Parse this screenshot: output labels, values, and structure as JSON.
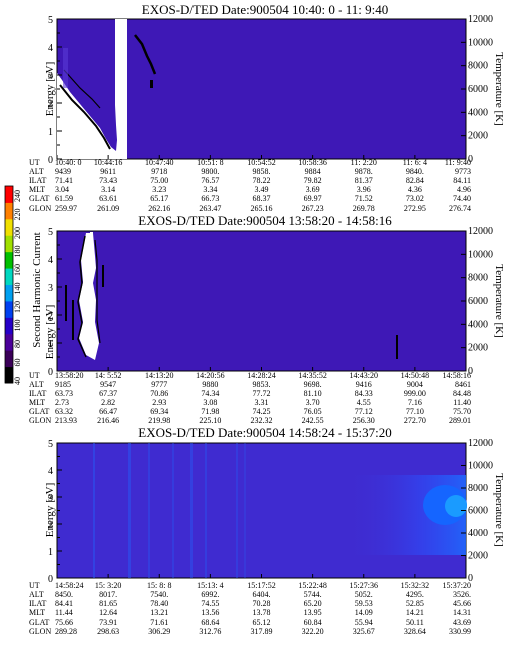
{
  "chart_data": [
    {
      "type": "heatmap",
      "title": "EXOS-D/TED   Date:900504  10:40: 0 - 11: 9:40",
      "ylabel": "Energy [eV]",
      "y2label": "Temperature [K]",
      "ylim": [
        0,
        5
      ],
      "y2lim": [
        0,
        12000
      ],
      "yticks": [
        "0",
        "1",
        "2",
        "3",
        "4",
        "5"
      ],
      "y2ticks": [
        "0",
        "2000",
        "4000",
        "6000",
        "8000",
        "10000",
        "12000"
      ],
      "row_labels": [
        "UT",
        "ALT",
        "ILAT",
        "MLT",
        "GLAT",
        "GLON"
      ],
      "columns": [
        [
          "10:40: 0",
          "9439",
          "71.41",
          "3.04",
          "61.59",
          "259.97"
        ],
        [
          "10:44:16",
          "9611",
          "73.43",
          "3.14",
          "63.61",
          "261.09"
        ],
        [
          "10:47:40",
          "9718",
          "75.00",
          "3.23",
          "65.17",
          "262.16"
        ],
        [
          "10:51: 8",
          "9800.",
          "76.57",
          "3.34",
          "66.73",
          "263.47"
        ],
        [
          "10:54:52",
          "9858.",
          "78.22",
          "3.49",
          "68.37",
          "265.16"
        ],
        [
          "10:58:36",
          "9884",
          "79.82",
          "3.69",
          "69.97",
          "267.23"
        ],
        [
          "11: 2:20",
          "9878.",
          "81.37",
          "3.96",
          "71.52",
          "269.78"
        ],
        [
          "11: 6: 4",
          "9840.",
          "82.84",
          "4.36",
          "73.02",
          "272.95"
        ],
        [
          "11: 9:40",
          "9773",
          "84.11",
          "4.96",
          "74.40",
          "276.74"
        ]
      ]
    },
    {
      "type": "heatmap",
      "title": "EXOS-D/TED   Date:900504  13:58:20 - 14:58:16",
      "ylabel": "Energy [eV]",
      "y2label": "Temperature [K]",
      "ylim": [
        0,
        5
      ],
      "y2lim": [
        0,
        12000
      ],
      "yticks": [
        "0",
        "1",
        "2",
        "3",
        "4",
        "5"
      ],
      "y2ticks": [
        "0",
        "2000",
        "4000",
        "6000",
        "8000",
        "10000",
        "12000"
      ],
      "row_labels": [
        "UT",
        "ALT",
        "ILAT",
        "MLT",
        "GLAT",
        "GLON"
      ],
      "columns": [
        [
          "13:58:20",
          "9185",
          "63.73",
          "2.73",
          "63.32",
          "213.93"
        ],
        [
          "14: 5:52",
          "9547",
          "67.37",
          "2.82",
          "66.47",
          "216.46"
        ],
        [
          "14:13:20",
          "9777",
          "70.86",
          "2.93",
          "69.34",
          "219.98"
        ],
        [
          "14:20:56",
          "9880",
          "74.34",
          "3.08",
          "71.98",
          "225.10"
        ],
        [
          "14:28:24",
          "9853.",
          "77.72",
          "3.31",
          "74.25",
          "232.32"
        ],
        [
          "14:35:52",
          "9698.",
          "81.10",
          "3.70",
          "76.05",
          "242.55"
        ],
        [
          "14:43:20",
          "9416",
          "84.33",
          "4.55",
          "77.12",
          "256.30"
        ],
        [
          "14:50:48",
          "9004",
          "999.00",
          "7.16",
          "77.10",
          "272.70"
        ],
        [
          "14:58:16",
          "8461",
          "84.48",
          "11.40",
          "75.70",
          "289.01"
        ]
      ],
      "colorbar": {
        "label": "Second Harmonic Current",
        "ticks": [
          "40",
          "60",
          "80",
          "100",
          "120",
          "140",
          "160",
          "180",
          "200",
          "220",
          "240"
        ],
        "colors": [
          "#000000",
          "#3a0058",
          "#4b009a",
          "#2600c8",
          "#0040f0",
          "#00a0f0",
          "#00d8c0",
          "#00c000",
          "#a0e000",
          "#f0e000",
          "#ff8000",
          "#ff0000"
        ]
      }
    },
    {
      "type": "heatmap",
      "title": "EXOS-D/TED   Date:900504  14:58:24 - 15:37:20",
      "ylabel": "Energy [eV]",
      "y2label": "Temperature [K]",
      "ylim": [
        0,
        5
      ],
      "y2lim": [
        0,
        12000
      ],
      "yticks": [
        "0",
        "1",
        "2",
        "3",
        "4",
        "5"
      ],
      "y2ticks": [
        "0",
        "2000",
        "4000",
        "6000",
        "8000",
        "10000",
        "12000"
      ],
      "row_labels": [
        "UT",
        "ALT",
        "ILAT",
        "MLT",
        "GLAT",
        "GLON"
      ],
      "columns": [
        [
          "14:58:24",
          "8450.",
          "84.41",
          "11.44",
          "75.66",
          "289.28"
        ],
        [
          "15: 3:20",
          "8017.",
          "81.65",
          "12.64",
          "73.91",
          "298.63"
        ],
        [
          "15: 8: 8",
          "7540.",
          "78.40",
          "13.21",
          "71.61",
          "306.29"
        ],
        [
          "15:13: 4",
          "6992.",
          "74.55",
          "13.56",
          "68.64",
          "312.76"
        ],
        [
          "15:17:52",
          "6404.",
          "70.28",
          "13.78",
          "65.12",
          "317.89"
        ],
        [
          "15:22:48",
          "5744.",
          "65.20",
          "13.95",
          "60.84",
          "322.20"
        ],
        [
          "15:27:36",
          "5052.",
          "59.53",
          "14.09",
          "55.94",
          "325.67"
        ],
        [
          "15:32:32",
          "4295.",
          "52.85",
          "14.21",
          "50.11",
          "328.64"
        ],
        [
          "15:37:20",
          "3526.",
          "45.66",
          "14.31",
          "43.69",
          "330.99"
        ]
      ]
    }
  ]
}
